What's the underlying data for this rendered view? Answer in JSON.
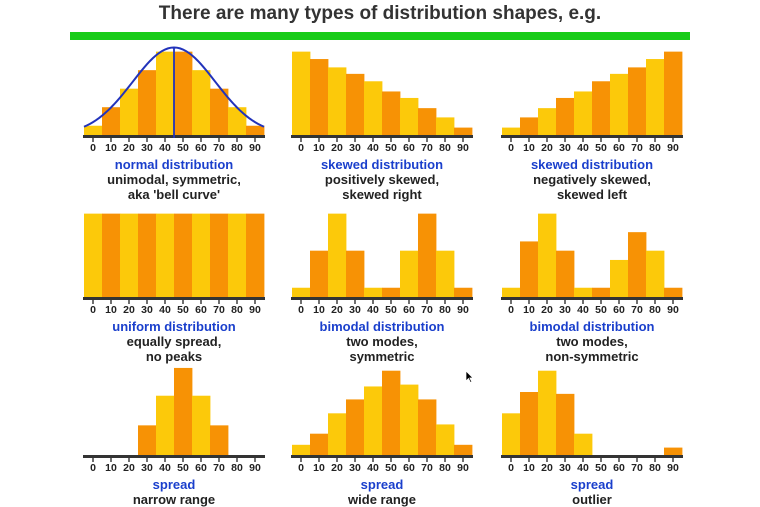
{
  "page": {
    "title": "There are many types of distribution shapes, e.g.",
    "accent_color": "#19cc19",
    "caption_title_color": "#1a3fcc",
    "bar_colors": [
      "#fcc90a",
      "#f79205"
    ]
  },
  "cursor": {
    "icon": "mouse-pointer-icon"
  },
  "chart_data": [
    {
      "type": "bar",
      "categories": [
        "0",
        "10",
        "20",
        "30",
        "40",
        "50",
        "60",
        "70",
        "80",
        "90"
      ],
      "values": [
        1,
        3,
        5,
        7,
        9,
        9,
        7,
        5,
        3,
        1
      ],
      "ylim": [
        0,
        9.5
      ],
      "overlay": "bell-curve",
      "center_line": 45,
      "caption": {
        "title": "normal distribution",
        "lines": [
          "unimodal, symmetric,",
          "aka 'bell curve'"
        ]
      }
    },
    {
      "type": "bar",
      "categories": [
        "0",
        "10",
        "20",
        "30",
        "40",
        "50",
        "60",
        "70",
        "80",
        "90"
      ],
      "values": [
        9,
        8.2,
        7.3,
        6.6,
        5.8,
        4.7,
        4.0,
        2.9,
        1.9,
        0.8
      ],
      "ylim": [
        0,
        9.5
      ],
      "caption": {
        "title": "skewed distribution",
        "lines": [
          "positively skewed,",
          "skewed right"
        ]
      }
    },
    {
      "type": "bar",
      "categories": [
        "0",
        "10",
        "20",
        "30",
        "40",
        "50",
        "60",
        "70",
        "80",
        "90"
      ],
      "values": [
        0.8,
        1.9,
        2.9,
        4.0,
        4.7,
        5.8,
        6.6,
        7.3,
        8.2,
        9
      ],
      "ylim": [
        0,
        9.5
      ],
      "caption": {
        "title": "skewed distribution",
        "lines": [
          "negatively skewed,",
          "skewed left"
        ]
      }
    },
    {
      "type": "bar",
      "categories": [
        "0",
        "10",
        "20",
        "30",
        "40",
        "50",
        "60",
        "70",
        "80",
        "90"
      ],
      "values": [
        9,
        9,
        9,
        9,
        9,
        9,
        9,
        9,
        9,
        9
      ],
      "ylim": [
        0,
        9.5
      ],
      "caption": {
        "title": "uniform distribution",
        "lines": [
          "equally spread,",
          "no peaks"
        ]
      }
    },
    {
      "type": "bar",
      "categories": [
        "0",
        "10",
        "20",
        "30",
        "40",
        "50",
        "60",
        "70",
        "80",
        "90"
      ],
      "values": [
        1,
        5,
        9,
        5,
        1,
        1,
        5,
        9,
        5,
        1
      ],
      "ylim": [
        0,
        9.5
      ],
      "caption": {
        "title": "bimodal distribution",
        "lines": [
          "two modes,",
          "symmetric"
        ]
      }
    },
    {
      "type": "bar",
      "categories": [
        "0",
        "10",
        "20",
        "30",
        "40",
        "50",
        "60",
        "70",
        "80",
        "90"
      ],
      "values": [
        1,
        6,
        9,
        5,
        1,
        1,
        4,
        7,
        5,
        1
      ],
      "ylim": [
        0,
        9.5
      ],
      "caption": {
        "title": "bimodal distribution",
        "lines": [
          "two modes,",
          "non-symmetric"
        ]
      }
    },
    {
      "type": "bar",
      "categories": [
        "0",
        "10",
        "20",
        "30",
        "40",
        "50",
        "60",
        "70",
        "80",
        "90"
      ],
      "values": [
        0,
        0,
        0,
        3.2,
        6.4,
        9.4,
        6.4,
        3.2,
        0,
        0
      ],
      "ylim": [
        0,
        9.5
      ],
      "caption": {
        "title": "spread",
        "lines": [
          "narrow range"
        ]
      }
    },
    {
      "type": "bar",
      "categories": [
        "0",
        "10",
        "20",
        "30",
        "40",
        "50",
        "60",
        "70",
        "80",
        "90"
      ],
      "values": [
        1.1,
        2.3,
        4.5,
        6.0,
        7.4,
        9.1,
        7.6,
        6.0,
        3.3,
        1.1
      ],
      "ylim": [
        0,
        9.5
      ],
      "caption": {
        "title": "spread",
        "lines": [
          "wide range"
        ]
      }
    },
    {
      "type": "bar",
      "categories": [
        "0",
        "10",
        "20",
        "30",
        "40",
        "50",
        "60",
        "70",
        "80",
        "90"
      ],
      "values": [
        4.5,
        6.8,
        9.1,
        6.6,
        2.3,
        0,
        0,
        0,
        0,
        0.8
      ],
      "ylim": [
        0,
        9.5
      ],
      "caption": {
        "title": "spread",
        "lines": [
          "outlier"
        ]
      }
    }
  ]
}
